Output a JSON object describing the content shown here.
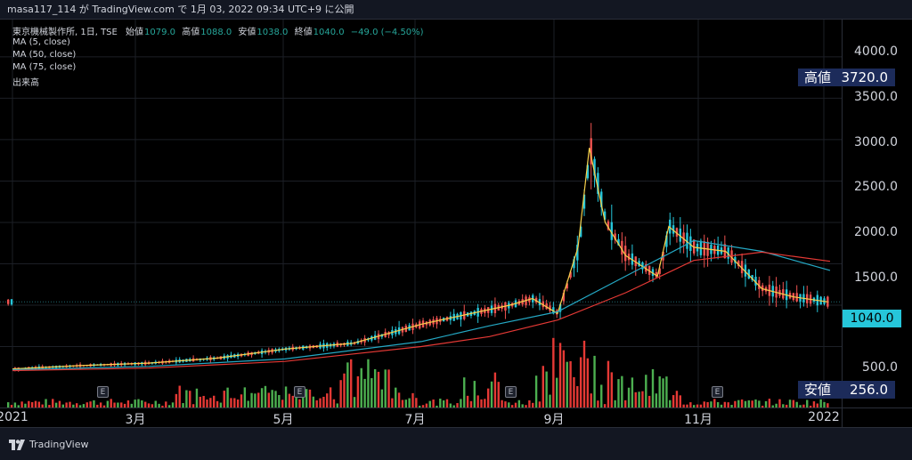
{
  "header": {
    "text": "masa117_114 が TradingView.com で 1月 03, 2022 09:34 UTC+9 に公開"
  },
  "legend": {
    "symbol": "東京機械製作所, 1日, TSE",
    "ohlc": [
      {
        "label": "始値",
        "value": "1079.0"
      },
      {
        "label": "高値",
        "value": "1088.0"
      },
      {
        "label": "安値",
        "value": "1038.0"
      },
      {
        "label": "終値",
        "value": "1040.0"
      }
    ],
    "change": "−49.0 (−4.50%)",
    "indicators": [
      "MA (5, close)",
      "MA (50, close)",
      "MA (75, close)",
      "出来高"
    ]
  },
  "price_axis": {
    "ticks": [
      "4000.0",
      "3500.0",
      "3000.0",
      "2500.0",
      "2000.0",
      "1500.0",
      "500.0"
    ],
    "high_tag": {
      "label": "高値",
      "value": "3720.0"
    },
    "low_tag": {
      "label": "安値",
      "value": "256.0"
    },
    "last_price": "1040.0"
  },
  "time_axis": {
    "ticks": [
      "2021",
      "3月",
      "5月",
      "7月",
      "9月",
      "11月",
      "2022"
    ]
  },
  "earnings_marker": "E",
  "footer": {
    "brand": "TradingView"
  },
  "colors": {
    "up": "#26a69a",
    "down": "#ef5350",
    "up_candle": "#26c6da",
    "ma5": "#f7d14c",
    "ma50": "#24a8c4",
    "ma75": "#e53935",
    "vol_up": "#4caf50",
    "vol_down": "#e53935",
    "tag_bg": "#1c2b5a",
    "last_bg": "#26c6da"
  },
  "chart_data": {
    "type": "candlestick",
    "title": "東京機械製作所, 1日, TSE",
    "xlabel": "",
    "ylabel": "",
    "x_range": [
      "2021-01",
      "2022-01"
    ],
    "ylim": [
      0,
      4300
    ],
    "series": [
      {
        "name": "MA (5, close)",
        "x": [
          "2021-01",
          "2021-02",
          "2021-03",
          "2021-04",
          "2021-05",
          "2021-06",
          "2021-07",
          "2021-08-10",
          "2021-08-20",
          "2021-09-01",
          "2021-09-10",
          "2021-09-15",
          "2021-09-22",
          "2021-10-01",
          "2021-10-15",
          "2021-10-20",
          "2021-11-01",
          "2021-11-15",
          "2021-12-01",
          "2021-12-15",
          "2021-12-30"
        ],
        "values": [
          230,
          270,
          300,
          360,
          470,
          540,
          770,
          1000,
          1080,
          900,
          1700,
          2900,
          2000,
          1600,
          1350,
          1950,
          1700,
          1650,
          1200,
          1100,
          1040
        ]
      },
      {
        "name": "MA (50, close)",
        "x": [
          "2021-01",
          "2021-03",
          "2021-05",
          "2021-07",
          "2021-08",
          "2021-09",
          "2021-10",
          "2021-11",
          "2021-12",
          "2022-01"
        ],
        "values": [
          220,
          260,
          350,
          560,
          750,
          920,
          1350,
          1780,
          1650,
          1420
        ]
      },
      {
        "name": "MA (75, close)",
        "x": [
          "2021-01",
          "2021-03",
          "2021-05",
          "2021-07",
          "2021-08",
          "2021-09",
          "2021-10",
          "2021-11",
          "2021-12",
          "2022-01"
        ],
        "values": [
          210,
          240,
          320,
          500,
          620,
          820,
          1150,
          1540,
          1640,
          1530
        ]
      }
    ],
    "high": 3720.0,
    "low": 256.0,
    "last": 1040.0,
    "last_ohlc": {
      "open": 1079.0,
      "high": 1088.0,
      "low": 1038.0,
      "close": 1040.0,
      "change": -49.0,
      "change_pct": -4.5
    }
  }
}
